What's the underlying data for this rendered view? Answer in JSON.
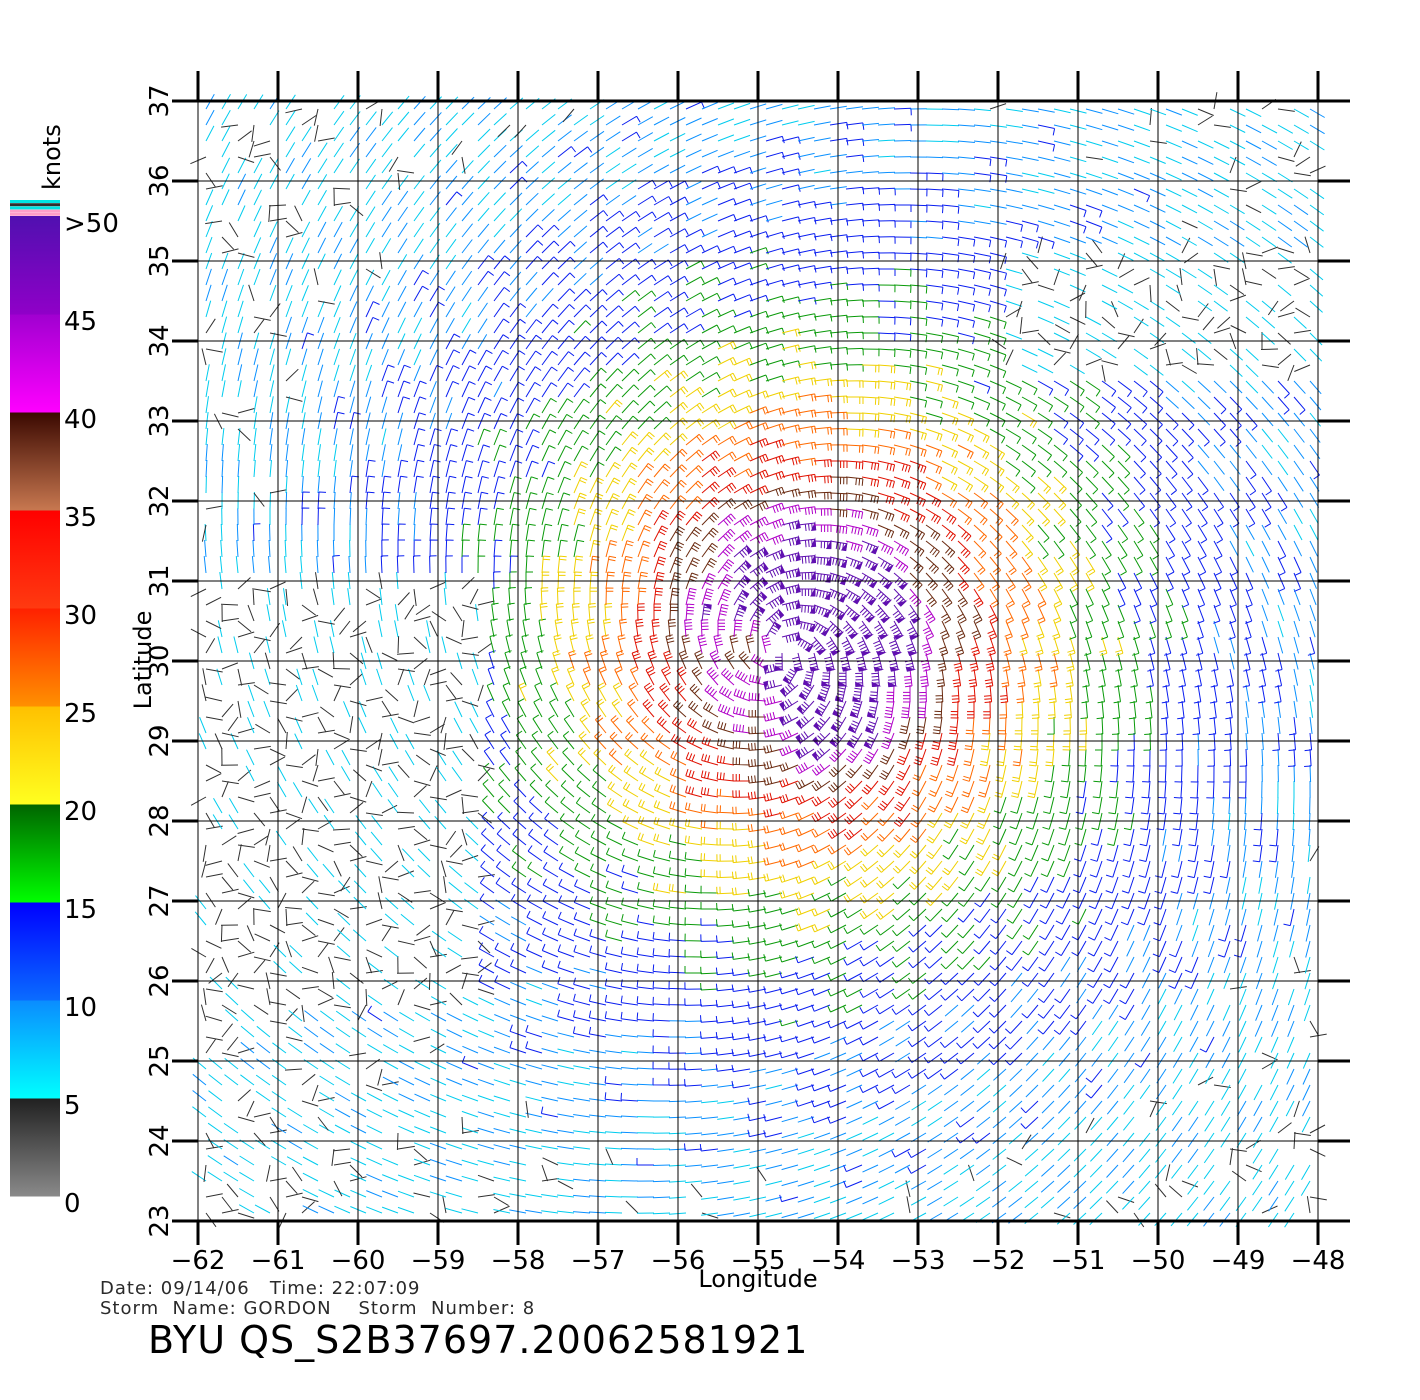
{
  "map": {
    "x_axis_title": "Longitude",
    "y_axis_title": "Latitude",
    "lon_ticks": [
      "-62",
      "-61",
      "-60",
      "-59",
      "-58",
      "-57",
      "-56",
      "-55",
      "-54",
      "-53",
      "-52",
      "-51",
      "-50",
      "-49",
      "-48"
    ],
    "lat_ticks": [
      "23",
      "24",
      "25",
      "26",
      "27",
      "28",
      "29",
      "30",
      "31",
      "32",
      "33",
      "34",
      "35",
      "36",
      "37"
    ],
    "lon_range": [
      -62,
      -48
    ],
    "lat_range": [
      23,
      37
    ],
    "grid": true,
    "storm_center": {
      "lon": -54.7,
      "lat": 30.1
    },
    "field": "wind barbs, cyclonic circulation"
  },
  "legend": {
    "unit": "knots",
    "labels": [
      ">50",
      "45",
      "40",
      "35",
      "30",
      "25",
      "20",
      "15",
      "10",
      "5",
      "0"
    ],
    "bands": [
      {
        "from": 0,
        "to": 5,
        "top": "#202020",
        "bottom": "#8a8a8a"
      },
      {
        "from": 5,
        "to": 10,
        "top": "#0a8cff",
        "bottom": "#00ffff"
      },
      {
        "from": 10,
        "to": 15,
        "top": "#0000ff",
        "bottom": "#0a6cff"
      },
      {
        "from": 15,
        "to": 20,
        "top": "#006400",
        "bottom": "#00ff00"
      },
      {
        "from": 20,
        "to": 25,
        "top": "#ffc000",
        "bottom": "#ffff20"
      },
      {
        "from": 25,
        "to": 30,
        "top": "#ff2000",
        "bottom": "#ff9000"
      },
      {
        "from": 30,
        "to": 35,
        "top": "#ff0000",
        "bottom": "#ff3a10"
      },
      {
        "from": 35,
        "to": 40,
        "top": "#3a0800",
        "bottom": "#c87850"
      },
      {
        "from": 40,
        "to": 45,
        "top": "#a000d0",
        "bottom": "#ff00ff"
      },
      {
        "from": 45,
        "to": 50,
        "top": "#5010b0",
        "bottom": "#9000c8"
      }
    ],
    "top_stripes": [
      "#00e5e5",
      "#303030",
      "#00e5e5",
      "#ff9ec8",
      "#ff9ec8"
    ]
  },
  "info": {
    "line1": "Date: 09/14/06   Time: 22:07:09",
    "line2": "Storm  Name: GORDON    Storm  Number: 8",
    "title": "BYU  QS_S2B37697.20062581921"
  }
}
